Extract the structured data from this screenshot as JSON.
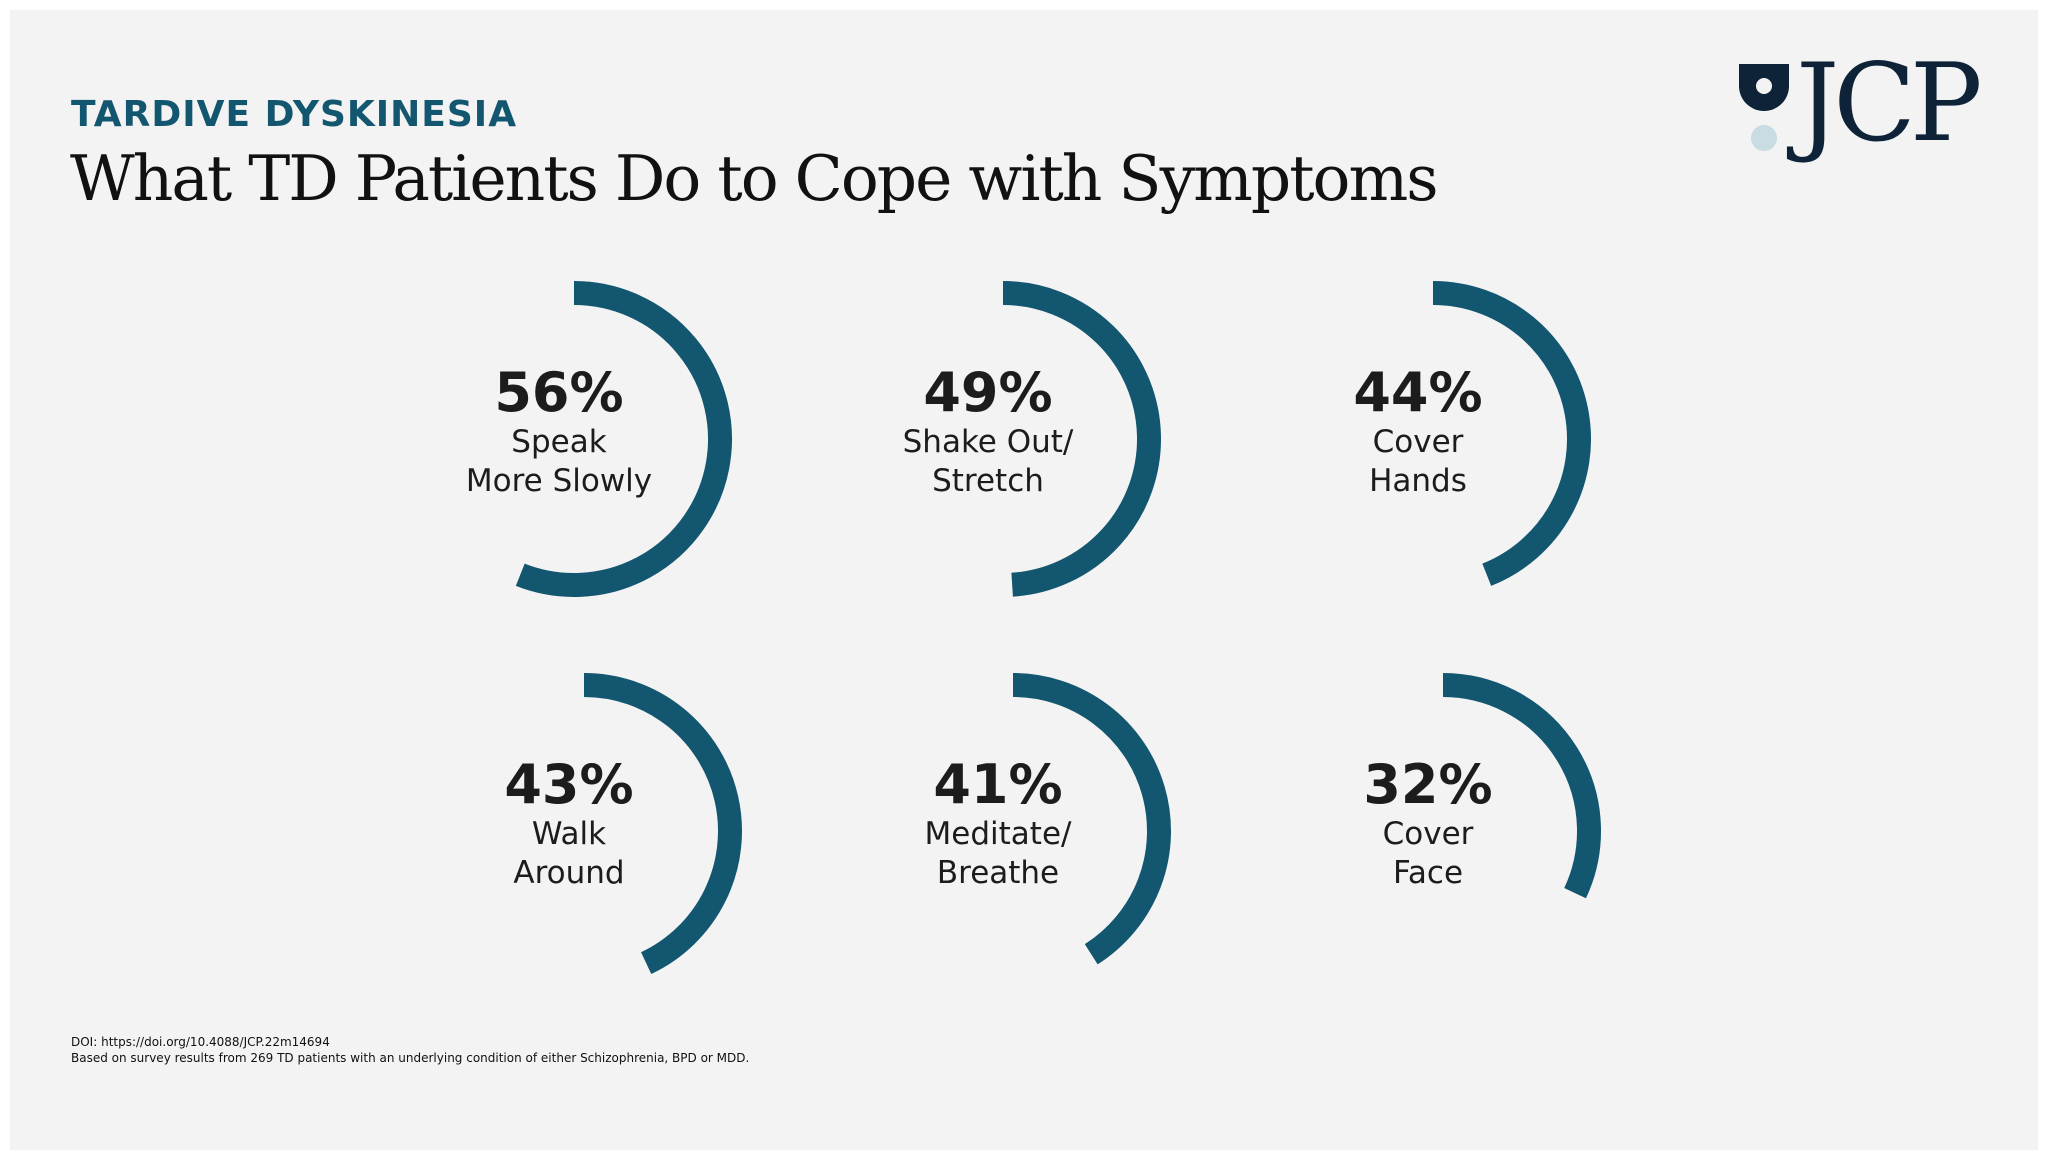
{
  "header": {
    "eyebrow": "TARDIVE DYSKINESIA",
    "title": "What TD Patients Do to Cope with Symptoms",
    "logo_text": "JCP"
  },
  "colors": {
    "ring": "#12566f",
    "eyebrow": "#12566f",
    "logo_dark": "#0e2238",
    "logo_light": "#c9dbe3",
    "background": "#f3f3f3"
  },
  "chart_data": {
    "type": "radial-progress",
    "title": "What TD Patients Do to Cope with Symptoms",
    "unit": "%",
    "items": [
      {
        "value": 56,
        "label_display": "56%",
        "label_lines": [
          "Speak",
          "More Slowly"
        ]
      },
      {
        "value": 49,
        "label_display": "49%",
        "label_lines": [
          "Shake Out/",
          "Stretch"
        ]
      },
      {
        "value": 44,
        "label_display": "44%",
        "label_lines": [
          "Cover",
          "Hands"
        ]
      },
      {
        "value": 43,
        "label_display": "43%",
        "label_lines": [
          "Walk",
          "Around"
        ]
      },
      {
        "value": 41,
        "label_display": "41%",
        "label_lines": [
          "Meditate/",
          "Breathe"
        ]
      },
      {
        "value": 32,
        "label_display": "32%",
        "label_lines": [
          "Cover",
          "Face"
        ]
      }
    ]
  },
  "footer": {
    "doi": "DOI: https://doi.org/10.4088/JCP.22m14694",
    "note": "Based on survey results from 269 TD patients with an underlying condition of either Schizophrenia, BPD or MDD."
  }
}
